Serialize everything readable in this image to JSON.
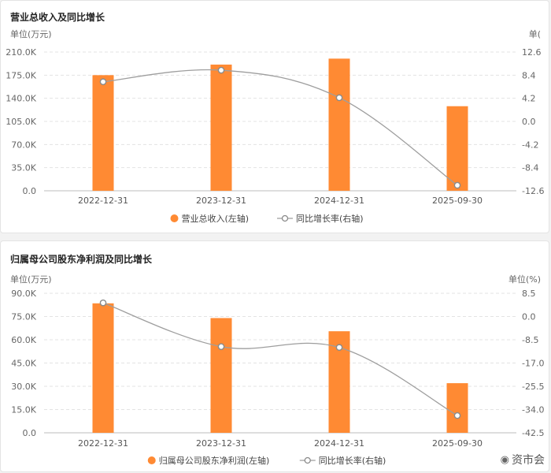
{
  "colors": {
    "bar": "#FF8A33",
    "line": "#9E9E9E",
    "grid": "#e3e3e3",
    "axis_text": "#666666"
  },
  "chart_data": [
    {
      "type": "bar",
      "title": "营业总收入及同比增长",
      "categories": [
        "2022-12-31",
        "2023-12-31",
        "2024-12-31",
        "2025-09-30"
      ],
      "left_unit_label": "单位(万元)",
      "right_unit_label": "单(",
      "left_ticks": [
        "210.0K",
        "175.0K",
        "140.0K",
        "105.0K",
        "70.0K",
        "35.0K",
        "0.0"
      ],
      "right_ticks": [
        "12.6",
        "8.4",
        "4.2",
        "0.0",
        "-4.2",
        "-8.4",
        "-12.6"
      ],
      "ylim_left": [
        0,
        210000
      ],
      "ylim_right": [
        -12.6,
        12.6
      ],
      "series": [
        {
          "name": "营业总收入(左轴)",
          "type": "bar",
          "axis": "left",
          "values": [
            175000,
            191000,
            200000,
            128000
          ]
        },
        {
          "name": "同比增长率(右轴)",
          "type": "line",
          "axis": "right",
          "values": [
            7.2,
            9.3,
            4.3,
            -11.6
          ]
        }
      ],
      "legend_position": "bottom-center",
      "grid": true
    },
    {
      "type": "bar",
      "title": "归属母公司股东净利润及同比增长",
      "categories": [
        "2022-12-31",
        "2023-12-31",
        "2024-12-31",
        "2025-09-30"
      ],
      "left_unit_label": "单位(万元)",
      "right_unit_label": "单位(%)",
      "left_ticks": [
        "90.0K",
        "75.0K",
        "60.0K",
        "45.0K",
        "30.0K",
        "15.0K",
        "0.0"
      ],
      "right_ticks": [
        "8.5",
        "0.0",
        "-8.5",
        "-17.0",
        "-25.5",
        "-34.0",
        "-42.5"
      ],
      "ylim_left": [
        0,
        90000
      ],
      "ylim_right": [
        -42.5,
        8.5
      ],
      "series": [
        {
          "name": "归属母公司股东净利润(左轴)",
          "type": "bar",
          "axis": "left",
          "values": [
            83500,
            74000,
            65500,
            32000
          ]
        },
        {
          "name": "同比增长率(右轴)",
          "type": "line",
          "axis": "right",
          "values": [
            5.0,
            -11.0,
            -11.3,
            -36.2
          ]
        }
      ],
      "legend_position": "bottom-center",
      "grid": true
    }
  ],
  "watermark": {
    "text": "资市会",
    "icon": "weibo-icon"
  }
}
